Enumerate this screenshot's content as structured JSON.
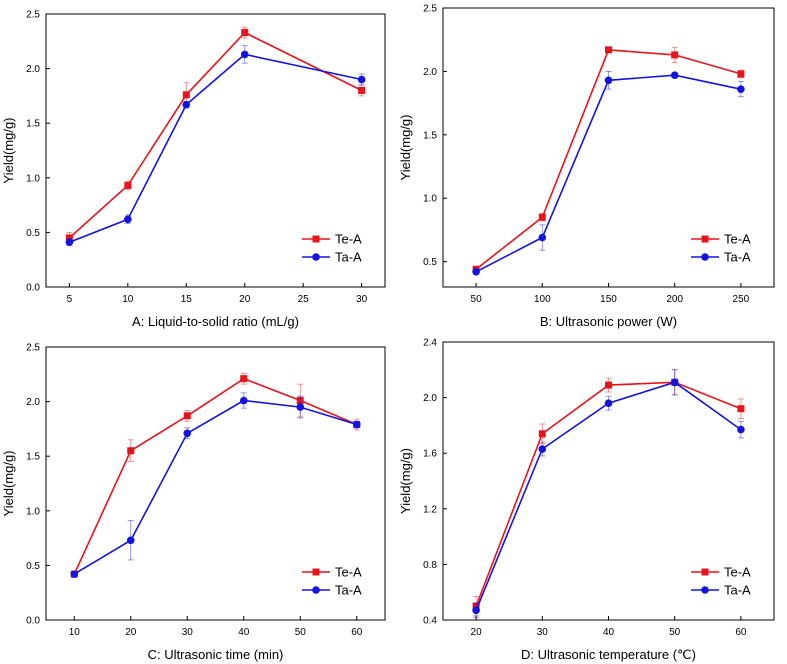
{
  "chart_data": [
    {
      "type": "line",
      "xlabel": "A: Liquid-to-solid ratio (mL/g)",
      "ylabel": "Yield(mg/g)",
      "xlim": [
        3,
        32
      ],
      "ylim": [
        0,
        2.5
      ],
      "xticks": [
        5,
        10,
        15,
        20,
        25,
        30
      ],
      "yticks": [
        0.0,
        0.5,
        1.0,
        1.5,
        2.0,
        2.5
      ],
      "ytick_labels": [
        "0.0",
        "0.5",
        "1.0",
        "1.5",
        "2.0",
        "2.5"
      ],
      "legend": "bottom-right",
      "x": [
        5,
        10,
        15,
        20,
        30
      ],
      "series": [
        {
          "name": "Te-A",
          "color": "#e8141c",
          "marker": "square",
          "values": [
            0.45,
            0.93,
            1.76,
            2.33,
            1.8
          ],
          "errors": [
            0.05,
            0.04,
            0.11,
            0.05,
            0.05
          ]
        },
        {
          "name": "Ta-A",
          "color": "#1414e0",
          "marker": "circle",
          "values": [
            0.41,
            0.62,
            1.67,
            2.13,
            1.9
          ],
          "errors": [
            0.03,
            0.04,
            0.03,
            0.08,
            0.05
          ]
        }
      ]
    },
    {
      "type": "line",
      "xlabel": "B: Ultrasonic power (W)",
      "ylabel": "Yield(mg/g)",
      "xlim": [
        25,
        275
      ],
      "ylim": [
        0.3,
        2.5
      ],
      "xticks": [
        50,
        100,
        150,
        200,
        250
      ],
      "yticks": [
        0.5,
        1.0,
        1.5,
        2.0,
        2.5
      ],
      "ytick_labels": [
        "0.5",
        "1.0",
        "1.5",
        "2.0",
        "2.5"
      ],
      "legend": "bottom-right",
      "x": [
        50,
        100,
        150,
        200,
        250
      ],
      "series": [
        {
          "name": "Te-A",
          "color": "#e8141c",
          "marker": "square",
          "values": [
            0.44,
            0.85,
            2.17,
            2.13,
            1.98
          ],
          "errors": [
            0.02,
            0.03,
            0.02,
            0.06,
            0.03
          ]
        },
        {
          "name": "Ta-A",
          "color": "#1414e0",
          "marker": "circle",
          "values": [
            0.42,
            0.69,
            1.93,
            1.97,
            1.86
          ],
          "errors": [
            0.02,
            0.1,
            0.07,
            0.02,
            0.06
          ]
        }
      ]
    },
    {
      "type": "line",
      "xlabel": "C: Ultrasonic time (min)",
      "ylabel": "Yield(mg/g)",
      "xlim": [
        5,
        65
      ],
      "ylim": [
        0,
        2.5
      ],
      "xticks": [
        10,
        20,
        30,
        40,
        50,
        60
      ],
      "yticks": [
        0.0,
        0.5,
        1.0,
        1.5,
        2.0,
        2.5
      ],
      "ytick_labels": [
        "0.0",
        "0.5",
        "1.0",
        "1.5",
        "2.0",
        "2.5"
      ],
      "legend": "bottom-right",
      "x": [
        10,
        20,
        30,
        40,
        50,
        60
      ],
      "series": [
        {
          "name": "Te-A",
          "color": "#e8141c",
          "marker": "square",
          "values": [
            0.42,
            1.55,
            1.87,
            2.21,
            2.01,
            1.79
          ],
          "errors": [
            0.02,
            0.1,
            0.05,
            0.05,
            0.15,
            0.05
          ]
        },
        {
          "name": "Ta-A",
          "color": "#1414e0",
          "marker": "circle",
          "values": [
            0.42,
            0.73,
            1.71,
            2.01,
            1.95,
            1.79
          ],
          "errors": [
            0.02,
            0.18,
            0.05,
            0.07,
            0.1,
            0.03
          ]
        }
      ]
    },
    {
      "type": "line",
      "xlabel": "D: Ultrasonic temperature (℃)",
      "ylabel": "Yield(mg/g)",
      "xlim": [
        15,
        65
      ],
      "ylim": [
        0.4,
        2.4
      ],
      "xticks": [
        20,
        30,
        40,
        50,
        60
      ],
      "yticks": [
        0.4,
        0.8,
        1.2,
        1.6,
        2.0,
        2.4
      ],
      "ytick_labels": [
        "0.4",
        "0.8",
        "1.2",
        "1.6",
        "2.0",
        "2.4"
      ],
      "legend": "bottom-right",
      "x": [
        20,
        30,
        40,
        50,
        60
      ],
      "series": [
        {
          "name": "Te-A",
          "color": "#e8141c",
          "marker": "square",
          "values": [
            0.5,
            1.74,
            2.09,
            2.11,
            1.92
          ],
          "errors": [
            0.07,
            0.07,
            0.05,
            0.09,
            0.07
          ]
        },
        {
          "name": "Ta-A",
          "color": "#1414e0",
          "marker": "circle",
          "values": [
            0.47,
            1.63,
            1.96,
            2.11,
            1.77
          ],
          "errors": [
            0.05,
            0.05,
            0.05,
            0.09,
            0.06
          ]
        }
      ]
    }
  ]
}
